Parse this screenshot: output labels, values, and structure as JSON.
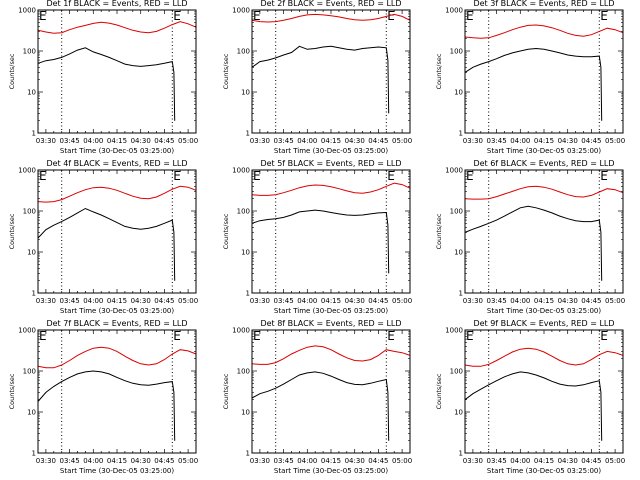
{
  "figure": {
    "x_tick_labels": [
      "03:30",
      "03:45",
      "04:00",
      "04:15",
      "04:30",
      "04:45",
      "05:00"
    ],
    "y_tick_labels": [
      "1",
      "10",
      "100",
      "1000"
    ],
    "xlabel": "Start Time (30-Dec-05 03:25:00)",
    "ylabel": "Counts/sec",
    "marker_text": "E",
    "colors": {
      "events": "#000000",
      "lld": "#dd0000",
      "axes": "#000000",
      "background": "#ffffff"
    }
  },
  "chart_data": [
    {
      "type": "line",
      "title": "Det 1f BLACK = Events, RED = LLD",
      "x_unit": "minutes after 03:25:00",
      "xlim": [
        0,
        100
      ],
      "ylim": [
        1,
        1000
      ],
      "y_scale": "log",
      "vlines": [
        15,
        85
      ],
      "series": [
        {
          "name": "BLACK = Events",
          "x": [
            0,
            5,
            10,
            15,
            20,
            25,
            30,
            35,
            40,
            45,
            50,
            55,
            60,
            65,
            70,
            75,
            80,
            85,
            86,
            86.5
          ],
          "y": [
            50,
            58,
            62,
            70,
            85,
            105,
            120,
            95,
            82,
            70,
            58,
            48,
            44,
            42,
            44,
            46,
            50,
            55,
            30,
            2
          ]
        },
        {
          "name": "RED = LLD",
          "x": [
            0,
            5,
            10,
            15,
            20,
            25,
            30,
            35,
            40,
            45,
            50,
            55,
            60,
            65,
            70,
            75,
            80,
            85,
            90,
            95,
            100
          ],
          "y": [
            320,
            290,
            270,
            280,
            330,
            380,
            420,
            470,
            500,
            480,
            430,
            370,
            320,
            290,
            280,
            300,
            360,
            440,
            520,
            460,
            380
          ]
        }
      ]
    },
    {
      "type": "line",
      "title": "Det 2f BLACK = Events, RED = LLD",
      "x_unit": "minutes after 03:25:00",
      "xlim": [
        0,
        100
      ],
      "ylim": [
        1,
        1000
      ],
      "y_scale": "log",
      "vlines": [
        15,
        85
      ],
      "series": [
        {
          "name": "BLACK = Events",
          "x": [
            0,
            5,
            10,
            15,
            20,
            25,
            30,
            35,
            40,
            45,
            50,
            55,
            60,
            65,
            70,
            75,
            80,
            85,
            86,
            86.5
          ],
          "y": [
            40,
            55,
            60,
            68,
            80,
            92,
            130,
            110,
            115,
            125,
            130,
            120,
            110,
            105,
            115,
            120,
            125,
            120,
            60,
            3
          ]
        },
        {
          "name": "RED = LLD",
          "x": [
            0,
            5,
            10,
            15,
            20,
            25,
            30,
            35,
            40,
            45,
            50,
            55,
            60,
            65,
            70,
            75,
            80,
            85,
            90,
            95,
            100
          ],
          "y": [
            560,
            520,
            510,
            520,
            560,
            620,
            700,
            760,
            780,
            760,
            720,
            680,
            620,
            580,
            560,
            580,
            620,
            700,
            780,
            700,
            560
          ]
        }
      ]
    },
    {
      "type": "line",
      "title": "Det 3f BLACK = Events, RED = LLD",
      "x_unit": "minutes after 03:25:00",
      "xlim": [
        0,
        100
      ],
      "ylim": [
        1,
        1000
      ],
      "y_scale": "log",
      "vlines": [
        15,
        85
      ],
      "series": [
        {
          "name": "BLACK = Events",
          "x": [
            0,
            5,
            10,
            15,
            20,
            25,
            30,
            35,
            40,
            45,
            50,
            55,
            60,
            65,
            70,
            75,
            80,
            85,
            86,
            86.5
          ],
          "y": [
            30,
            40,
            48,
            55,
            65,
            78,
            90,
            100,
            110,
            115,
            110,
            100,
            90,
            80,
            75,
            72,
            72,
            75,
            40,
            2
          ]
        },
        {
          "name": "RED = LLD",
          "x": [
            0,
            5,
            10,
            15,
            20,
            25,
            30,
            35,
            40,
            45,
            50,
            55,
            60,
            65,
            70,
            75,
            80,
            85,
            90,
            95,
            100
          ],
          "y": [
            220,
            210,
            205,
            210,
            240,
            280,
            330,
            380,
            420,
            430,
            410,
            370,
            320,
            270,
            240,
            230,
            250,
            300,
            360,
            330,
            280
          ]
        }
      ]
    },
    {
      "type": "line",
      "title": "Det 4f BLACK = Events, RED = LLD",
      "x_unit": "minutes after 03:25:00",
      "xlim": [
        0,
        100
      ],
      "ylim": [
        1,
        1000
      ],
      "y_scale": "log",
      "vlines": [
        15,
        85
      ],
      "series": [
        {
          "name": "BLACK = Events",
          "x": [
            0,
            5,
            10,
            15,
            20,
            25,
            30,
            35,
            40,
            45,
            50,
            55,
            60,
            65,
            70,
            75,
            80,
            85,
            86,
            86.5
          ],
          "y": [
            22,
            35,
            45,
            55,
            70,
            90,
            115,
            95,
            80,
            65,
            52,
            42,
            38,
            36,
            38,
            42,
            50,
            60,
            30,
            2
          ]
        },
        {
          "name": "RED = LLD",
          "x": [
            0,
            5,
            10,
            15,
            20,
            25,
            30,
            35,
            40,
            45,
            50,
            55,
            60,
            65,
            70,
            75,
            80,
            85,
            90,
            95,
            100
          ],
          "y": [
            170,
            165,
            170,
            190,
            230,
            280,
            330,
            370,
            380,
            360,
            320,
            270,
            230,
            205,
            200,
            220,
            270,
            340,
            400,
            380,
            320
          ]
        }
      ]
    },
    {
      "type": "line",
      "title": "Det 5f BLACK = Events, RED = LLD",
      "x_unit": "minutes after 03:25:00",
      "xlim": [
        0,
        100
      ],
      "ylim": [
        1,
        1000
      ],
      "y_scale": "log",
      "vlines": [
        15,
        85
      ],
      "series": [
        {
          "name": "BLACK = Events",
          "x": [
            0,
            5,
            10,
            15,
            20,
            25,
            30,
            35,
            40,
            45,
            50,
            55,
            60,
            65,
            70,
            75,
            80,
            85,
            86,
            86.5
          ],
          "y": [
            50,
            58,
            62,
            65,
            70,
            80,
            95,
            100,
            105,
            100,
            92,
            85,
            80,
            78,
            80,
            85,
            90,
            92,
            45,
            3
          ]
        },
        {
          "name": "RED = LLD",
          "x": [
            0,
            5,
            10,
            15,
            20,
            25,
            30,
            35,
            40,
            45,
            50,
            55,
            60,
            65,
            70,
            75,
            80,
            85,
            90,
            95,
            100
          ],
          "y": [
            250,
            240,
            240,
            250,
            280,
            320,
            370,
            410,
            430,
            420,
            390,
            350,
            310,
            280,
            270,
            290,
            330,
            400,
            480,
            440,
            360
          ]
        }
      ]
    },
    {
      "type": "line",
      "title": "Det 6f BLACK = Events, RED = LLD",
      "x_unit": "minutes after 03:25:00",
      "xlim": [
        0,
        100
      ],
      "ylim": [
        1,
        1000
      ],
      "y_scale": "log",
      "vlines": [
        15,
        85
      ],
      "series": [
        {
          "name": "BLACK = Events",
          "x": [
            0,
            5,
            10,
            15,
            20,
            25,
            30,
            35,
            40,
            45,
            50,
            55,
            60,
            65,
            70,
            75,
            80,
            85,
            86,
            86.5
          ],
          "y": [
            30,
            36,
            42,
            50,
            60,
            75,
            95,
            120,
            130,
            120,
            105,
            90,
            75,
            65,
            58,
            55,
            55,
            60,
            30,
            2
          ]
        },
        {
          "name": "RED = LLD",
          "x": [
            0,
            5,
            10,
            15,
            20,
            25,
            30,
            35,
            40,
            45,
            50,
            55,
            60,
            65,
            70,
            75,
            80,
            85,
            90,
            95,
            100
          ],
          "y": [
            200,
            195,
            195,
            200,
            225,
            260,
            300,
            350,
            390,
            400,
            380,
            340,
            290,
            250,
            225,
            220,
            240,
            290,
            350,
            330,
            280
          ]
        }
      ]
    },
    {
      "type": "line",
      "title": "Det 7f BLACK = Events, RED = LLD",
      "x_unit": "minutes after 03:25:00",
      "xlim": [
        0,
        100
      ],
      "ylim": [
        1,
        1000
      ],
      "y_scale": "log",
      "vlines": [
        15,
        85
      ],
      "series": [
        {
          "name": "BLACK = Events",
          "x": [
            0,
            5,
            10,
            15,
            20,
            25,
            30,
            35,
            40,
            45,
            50,
            55,
            60,
            65,
            70,
            75,
            80,
            85,
            86,
            86.5
          ],
          "y": [
            18,
            30,
            42,
            55,
            70,
            85,
            95,
            100,
            95,
            85,
            70,
            58,
            50,
            46,
            45,
            48,
            52,
            55,
            30,
            2
          ]
        },
        {
          "name": "RED = LLD",
          "x": [
            0,
            5,
            10,
            15,
            20,
            25,
            30,
            35,
            40,
            45,
            50,
            55,
            60,
            65,
            70,
            75,
            80,
            85,
            90,
            95,
            100
          ],
          "y": [
            130,
            120,
            120,
            140,
            180,
            240,
            300,
            360,
            380,
            360,
            300,
            230,
            180,
            150,
            140,
            150,
            190,
            260,
            330,
            310,
            260
          ]
        }
      ]
    },
    {
      "type": "line",
      "title": "Det 8f BLACK = Events, RED = LLD",
      "x_unit": "minutes after 03:25:00",
      "xlim": [
        0,
        100
      ],
      "ylim": [
        1,
        1000
      ],
      "y_scale": "log",
      "vlines": [
        15,
        85
      ],
      "series": [
        {
          "name": "BLACK = Events",
          "x": [
            0,
            5,
            10,
            15,
            20,
            25,
            30,
            35,
            40,
            45,
            50,
            55,
            60,
            65,
            70,
            75,
            80,
            85,
            86,
            86.5
          ],
          "y": [
            22,
            28,
            32,
            38,
            48,
            62,
            80,
            90,
            95,
            88,
            75,
            62,
            52,
            47,
            46,
            50,
            56,
            62,
            30,
            2
          ]
        },
        {
          "name": "RED = LLD",
          "x": [
            0,
            5,
            10,
            15,
            20,
            25,
            30,
            35,
            40,
            45,
            50,
            55,
            60,
            65,
            70,
            75,
            80,
            85,
            90,
            95,
            100
          ],
          "y": [
            150,
            145,
            145,
            160,
            200,
            260,
            320,
            380,
            410,
            390,
            330,
            260,
            210,
            180,
            175,
            190,
            240,
            330,
            300,
            280,
            240
          ]
        }
      ]
    },
    {
      "type": "line",
      "title": "Det 9f BLACK = Events, RED = LLD",
      "x_unit": "minutes after 03:25:00",
      "xlim": [
        0,
        100
      ],
      "ylim": [
        1,
        1000
      ],
      "y_scale": "log",
      "vlines": [
        15,
        85
      ],
      "series": [
        {
          "name": "BLACK = Events",
          "x": [
            0,
            5,
            10,
            15,
            20,
            25,
            30,
            35,
            40,
            45,
            50,
            55,
            60,
            65,
            70,
            75,
            80,
            85,
            86,
            86.5
          ],
          "y": [
            20,
            28,
            36,
            46,
            58,
            72,
            85,
            95,
            90,
            80,
            68,
            56,
            48,
            44,
            43,
            46,
            52,
            58,
            30,
            2
          ]
        },
        {
          "name": "RED = LLD",
          "x": [
            0,
            5,
            10,
            15,
            20,
            25,
            30,
            35,
            40,
            45,
            50,
            55,
            60,
            65,
            70,
            75,
            80,
            85,
            90,
            95,
            100
          ],
          "y": [
            140,
            130,
            130,
            145,
            180,
            230,
            290,
            340,
            360,
            340,
            290,
            230,
            180,
            150,
            140,
            150,
            190,
            250,
            300,
            280,
            240
          ]
        }
      ]
    }
  ]
}
